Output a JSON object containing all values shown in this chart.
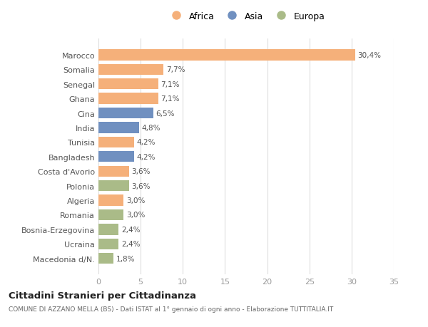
{
  "categories": [
    "Marocco",
    "Somalia",
    "Senegal",
    "Ghana",
    "Cina",
    "India",
    "Tunisia",
    "Bangladesh",
    "Costa d'Avorio",
    "Polonia",
    "Algeria",
    "Romania",
    "Bosnia-Erzegovina",
    "Ucraina",
    "Macedonia d/N."
  ],
  "values": [
    30.4,
    7.7,
    7.1,
    7.1,
    6.5,
    4.8,
    4.2,
    4.2,
    3.6,
    3.6,
    3.0,
    3.0,
    2.4,
    2.4,
    1.8
  ],
  "labels": [
    "30,4%",
    "7,7%",
    "7,1%",
    "7,1%",
    "6,5%",
    "4,8%",
    "4,2%",
    "4,2%",
    "3,6%",
    "3,6%",
    "3,0%",
    "3,0%",
    "2,4%",
    "2,4%",
    "1,8%"
  ],
  "continents": [
    "Africa",
    "Africa",
    "Africa",
    "Africa",
    "Asia",
    "Asia",
    "Africa",
    "Asia",
    "Africa",
    "Europa",
    "Africa",
    "Europa",
    "Europa",
    "Europa",
    "Europa"
  ],
  "color_map": {
    "Africa": "#F5B07A",
    "Asia": "#7090C0",
    "Europa": "#AABB88"
  },
  "title1": "Cittadini Stranieri per Cittadinanza",
  "title2": "COMUNE DI AZZANO MELLA (BS) - Dati ISTAT al 1° gennaio di ogni anno - Elaborazione TUTTITALIA.IT",
  "xlim": [
    0,
    35
  ],
  "xticks": [
    0,
    5,
    10,
    15,
    20,
    25,
    30,
    35
  ],
  "background_color": "#ffffff",
  "grid_color": "#dddddd"
}
